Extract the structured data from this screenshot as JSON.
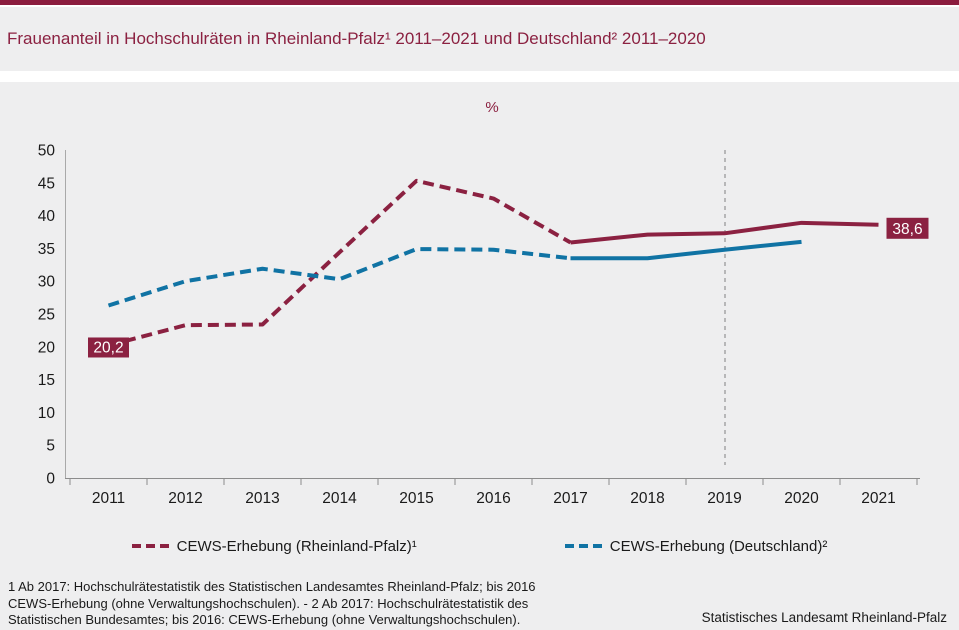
{
  "page": {
    "title": "Frauenanteil in Hochschulräten in Rheinland-Pfalz¹ 2011–2021 und Deutschland² 2011–2020",
    "credit": "Statistisches Landesamt Rheinland-Pfalz"
  },
  "footnotes": [
    "1 Ab 2017: Hochschulrätestatistik des Statistischen Landesamtes Rheinland-Pfalz; bis 2016",
    "CEWS-Erhebung (ohne Verwaltungshochschulen). - 2 Ab 2017: Hochschulrätestatistik des",
    "Statistischen Bundesamtes; bis 2016: CEWS-Erhebung (ohne Verwaltungshochschulen)."
  ],
  "colors": {
    "accent_red": "#8B2141",
    "accent_blue": "#1073A4",
    "panel_bg": "#EEEEEF",
    "axis_gray": "#8C8C8C",
    "label_text": "#1a1a1a"
  },
  "chart_data": {
    "type": "line",
    "title": "Frauenanteil in Hochschulräten in Rheinland-Pfalz 2011–2021 und Deutschland 2011–2020",
    "unit_label": "%",
    "categories": [
      "2011",
      "2012",
      "2013",
      "2014",
      "2015",
      "2016",
      "2017",
      "2018",
      "2019",
      "2020",
      "2021"
    ],
    "series": [
      {
        "name": "CEWS-Erhebung (Rheinland-Pfalz)¹",
        "color": "#8B2141",
        "values": [
          20.2,
          23.3,
          23.4,
          34.4,
          45.3,
          42.6,
          35.9,
          37.1,
          37.3,
          38.9,
          38.6
        ],
        "dashed_until_index": 6,
        "first_point_label": "20,2",
        "last_point_label": "38,6"
      },
      {
        "name": "CEWS-Erhebung (Deutschland)²",
        "color": "#1073A4",
        "values": [
          26.3,
          30.0,
          31.9,
          30.3,
          34.9,
          34.8,
          33.5,
          33.5,
          34.8,
          36.0,
          null
        ],
        "dashed_until_index": 6,
        "first_point_label": null,
        "last_point_label": null
      }
    ],
    "ylim": [
      0,
      50
    ],
    "ytick_step": 5,
    "grid": false,
    "legend_position": "bottom",
    "marker_line_category": "2019",
    "notes": "dashed = CEWS-Erhebung bis 2016/2017, solid = Hochschulrätestatistik ab 2017"
  }
}
